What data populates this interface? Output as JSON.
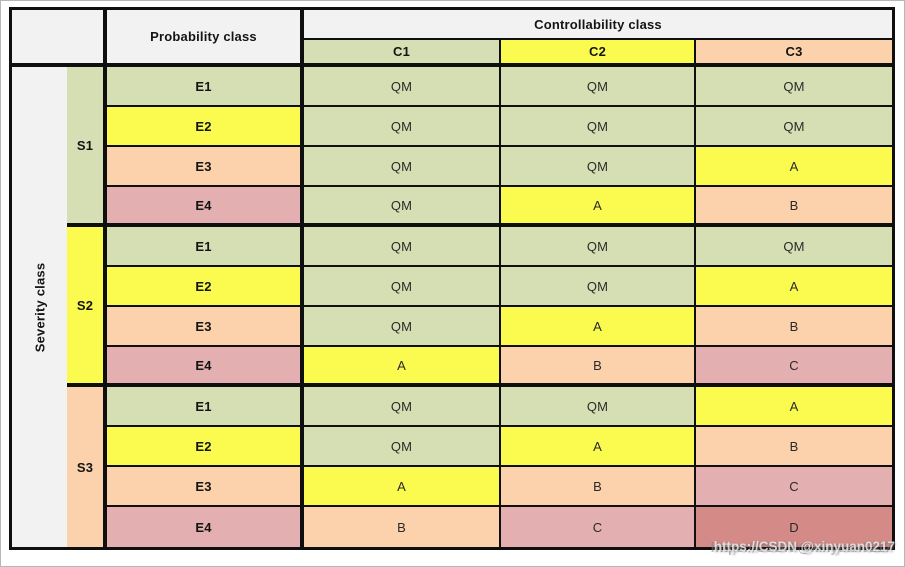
{
  "colors": {
    "qm": "#d6dfb4",
    "a": "#fbfa4e",
    "b": "#fbd2ab",
    "c": "#e3afb0",
    "d": "#d48a87",
    "header_bg": "#f2f2f2",
    "border": "#0f0f0f"
  },
  "header": {
    "controllability": "Controllability class",
    "probability": "Probability class",
    "severity": "Severity class",
    "columns": [
      {
        "label": "C1",
        "color": "qm"
      },
      {
        "label": "C2",
        "color": "a"
      },
      {
        "label": "C3",
        "color": "b"
      }
    ]
  },
  "groups": [
    {
      "severity": {
        "label": "S1",
        "color": "qm"
      },
      "rows": [
        {
          "exposure": {
            "label": "E1",
            "color": "qm"
          },
          "cells": [
            {
              "label": "QM",
              "color": "qm"
            },
            {
              "label": "QM",
              "color": "qm"
            },
            {
              "label": "QM",
              "color": "qm"
            }
          ]
        },
        {
          "exposure": {
            "label": "E2",
            "color": "a"
          },
          "cells": [
            {
              "label": "QM",
              "color": "qm"
            },
            {
              "label": "QM",
              "color": "qm"
            },
            {
              "label": "QM",
              "color": "qm"
            }
          ]
        },
        {
          "exposure": {
            "label": "E3",
            "color": "b"
          },
          "cells": [
            {
              "label": "QM",
              "color": "qm"
            },
            {
              "label": "QM",
              "color": "qm"
            },
            {
              "label": "A",
              "color": "a"
            }
          ]
        },
        {
          "exposure": {
            "label": "E4",
            "color": "c"
          },
          "cells": [
            {
              "label": "QM",
              "color": "qm"
            },
            {
              "label": "A",
              "color": "a"
            },
            {
              "label": "B",
              "color": "b"
            }
          ]
        }
      ]
    },
    {
      "severity": {
        "label": "S2",
        "color": "a"
      },
      "rows": [
        {
          "exposure": {
            "label": "E1",
            "color": "qm"
          },
          "cells": [
            {
              "label": "QM",
              "color": "qm"
            },
            {
              "label": "QM",
              "color": "qm"
            },
            {
              "label": "QM",
              "color": "qm"
            }
          ]
        },
        {
          "exposure": {
            "label": "E2",
            "color": "a"
          },
          "cells": [
            {
              "label": "QM",
              "color": "qm"
            },
            {
              "label": "QM",
              "color": "qm"
            },
            {
              "label": "A",
              "color": "a"
            }
          ]
        },
        {
          "exposure": {
            "label": "E3",
            "color": "b"
          },
          "cells": [
            {
              "label": "QM",
              "color": "qm"
            },
            {
              "label": "A",
              "color": "a"
            },
            {
              "label": "B",
              "color": "b"
            }
          ]
        },
        {
          "exposure": {
            "label": "E4",
            "color": "c"
          },
          "cells": [
            {
              "label": "A",
              "color": "a"
            },
            {
              "label": "B",
              "color": "b"
            },
            {
              "label": "C",
              "color": "c"
            }
          ]
        }
      ]
    },
    {
      "severity": {
        "label": "S3",
        "color": "b"
      },
      "rows": [
        {
          "exposure": {
            "label": "E1",
            "color": "qm"
          },
          "cells": [
            {
              "label": "QM",
              "color": "qm"
            },
            {
              "label": "QM",
              "color": "qm"
            },
            {
              "label": "A",
              "color": "a"
            }
          ]
        },
        {
          "exposure": {
            "label": "E2",
            "color": "a"
          },
          "cells": [
            {
              "label": "QM",
              "color": "qm"
            },
            {
              "label": "A",
              "color": "a"
            },
            {
              "label": "B",
              "color": "b"
            }
          ]
        },
        {
          "exposure": {
            "label": "E3",
            "color": "b"
          },
          "cells": [
            {
              "label": "A",
              "color": "a"
            },
            {
              "label": "B",
              "color": "b"
            },
            {
              "label": "C",
              "color": "c"
            }
          ]
        },
        {
          "exposure": {
            "label": "E4",
            "color": "c"
          },
          "cells": [
            {
              "label": "B",
              "color": "b"
            },
            {
              "label": "C",
              "color": "c"
            },
            {
              "label": "D",
              "color": "d"
            }
          ]
        }
      ]
    }
  ],
  "watermark": "https://CSDN @xinyuan0217",
  "chart_data": {
    "type": "table",
    "title": "ASIL determination matrix",
    "columns": [
      "Severity class",
      "Probability class",
      "C1",
      "C2",
      "C3"
    ],
    "rows": [
      [
        "S1",
        "E1",
        "QM",
        "QM",
        "QM"
      ],
      [
        "S1",
        "E2",
        "QM",
        "QM",
        "QM"
      ],
      [
        "S1",
        "E3",
        "QM",
        "QM",
        "A"
      ],
      [
        "S1",
        "E4",
        "QM",
        "A",
        "B"
      ],
      [
        "S2",
        "E1",
        "QM",
        "QM",
        "QM"
      ],
      [
        "S2",
        "E2",
        "QM",
        "QM",
        "A"
      ],
      [
        "S2",
        "E3",
        "QM",
        "A",
        "B"
      ],
      [
        "S2",
        "E4",
        "A",
        "B",
        "C"
      ],
      [
        "S3",
        "E1",
        "QM",
        "QM",
        "A"
      ],
      [
        "S3",
        "E2",
        "QM",
        "A",
        "B"
      ],
      [
        "S3",
        "E3",
        "A",
        "B",
        "C"
      ],
      [
        "S3",
        "E4",
        "B",
        "C",
        "D"
      ]
    ]
  }
}
